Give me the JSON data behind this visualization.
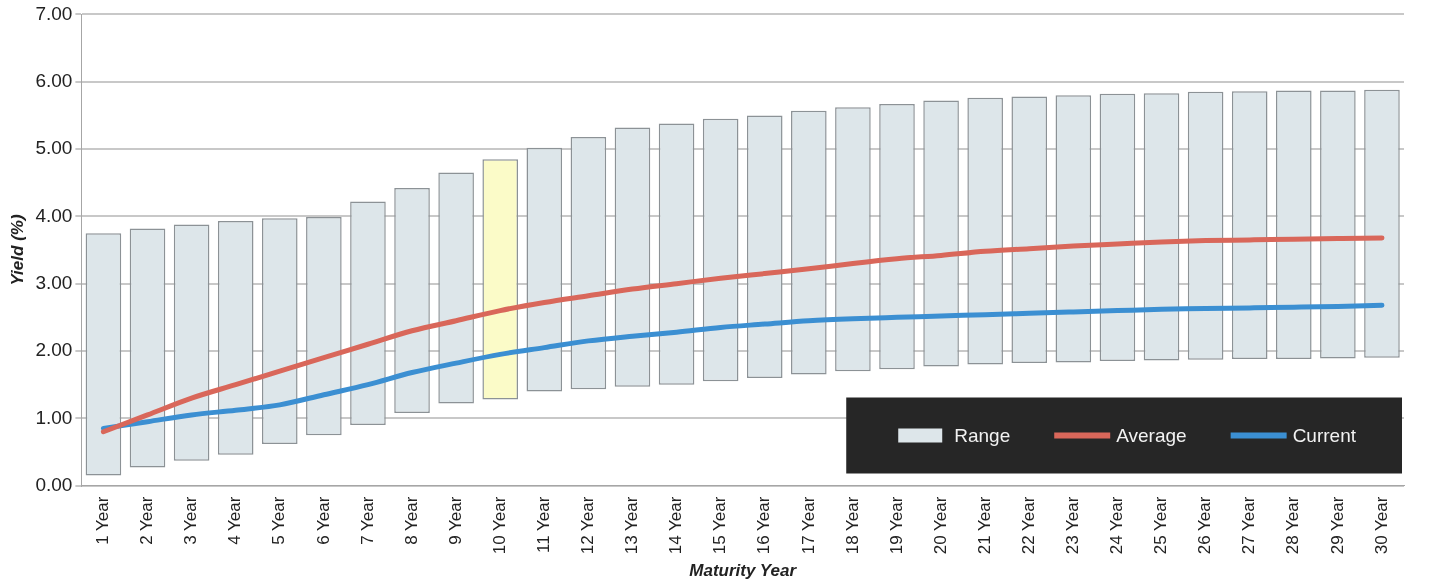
{
  "chart_data": {
    "type": "bar",
    "xlabel": "Maturity Year",
    "ylabel": "Yield (%)",
    "categories": [
      "1 Year",
      "2 Year",
      "3 Year",
      "4 Year",
      "5 Year",
      "6 Year",
      "7 Year",
      "8 Year",
      "9 Year",
      "10 Year",
      "11 Year",
      "12 Year",
      "13 Year",
      "14 Year",
      "15 Year",
      "16 Year",
      "17 Year",
      "18 Year",
      "19 Year",
      "20 Year",
      "21 Year",
      "22 Year",
      "23 Year",
      "24 Year",
      "25 Year",
      "26 Year",
      "27 Year",
      "28 Year",
      "29 Year",
      "30 Year"
    ],
    "series": [
      {
        "name": "Range",
        "color": "#dde6ea",
        "colors": [
          "#dde6ea",
          "#dde6ea",
          "#dde6ea",
          "#dde6ea",
          "#dde6ea",
          "#dde6ea",
          "#dde6ea",
          "#dde6ea",
          "#dde6ea",
          "#fbfbc8",
          "#dde6ea",
          "#dde6ea",
          "#dde6ea",
          "#dde6ea",
          "#dde6ea",
          "#dde6ea",
          "#dde6ea",
          "#dde6ea",
          "#dde6ea",
          "#dde6ea",
          "#dde6ea",
          "#dde6ea",
          "#dde6ea",
          "#dde6ea",
          "#dde6ea",
          "#dde6ea",
          "#dde6ea",
          "#dde6ea",
          "#dde6ea",
          "#dde6ea"
        ],
        "base": [
          0.15,
          0.27,
          0.37,
          0.46,
          0.62,
          0.75,
          0.9,
          1.08,
          1.22,
          1.28,
          1.4,
          1.43,
          1.47,
          1.5,
          1.55,
          1.6,
          1.65,
          1.7,
          1.73,
          1.77,
          1.8,
          1.82,
          1.83,
          1.85,
          1.86,
          1.87,
          1.88,
          1.88,
          1.89,
          1.9
        ],
        "values": [
          3.6,
          3.55,
          3.51,
          3.47,
          3.35,
          3.24,
          3.32,
          3.34,
          3.43,
          3.57,
          3.62,
          3.75,
          3.85,
          3.88,
          3.9,
          3.9,
          3.92,
          3.92,
          3.94,
          3.95,
          3.96,
          3.96,
          3.97,
          3.97,
          3.97,
          3.98,
          3.98,
          3.99,
          3.98,
          3.98
        ]
      },
      {
        "name": "Average",
        "type": "line",
        "color": "#d9675a",
        "values": [
          0.8,
          1.05,
          1.3,
          1.5,
          1.7,
          1.9,
          2.1,
          2.3,
          2.45,
          2.6,
          2.72,
          2.82,
          2.92,
          3.0,
          3.08,
          3.15,
          3.22,
          3.3,
          3.37,
          3.42,
          3.48,
          3.52,
          3.56,
          3.59,
          3.62,
          3.64,
          3.65,
          3.66,
          3.67,
          3.68
        ]
      },
      {
        "name": "Current",
        "type": "line",
        "color": "#3b8fd2",
        "values": [
          0.85,
          0.95,
          1.05,
          1.12,
          1.2,
          1.35,
          1.5,
          1.68,
          1.82,
          1.95,
          2.05,
          2.15,
          2.22,
          2.28,
          2.35,
          2.4,
          2.45,
          2.48,
          2.5,
          2.52,
          2.54,
          2.56,
          2.58,
          2.6,
          2.62,
          2.63,
          2.64,
          2.65,
          2.66,
          2.68
        ]
      }
    ],
    "ylim": [
      0,
      7
    ],
    "yticks": [
      {
        "value": 0,
        "label": "0.00"
      },
      {
        "value": 1,
        "label": "1.00"
      },
      {
        "value": 2,
        "label": "2.00"
      },
      {
        "value": 3,
        "label": "3.00"
      },
      {
        "value": 4,
        "label": "4.00"
      },
      {
        "value": 5,
        "label": "5.00"
      },
      {
        "value": 6,
        "label": "6.00"
      },
      {
        "value": 7,
        "label": "7.00"
      }
    ],
    "grid": "y",
    "legend": "bottom right",
    "marker": "none",
    "line_style": "solid"
  }
}
